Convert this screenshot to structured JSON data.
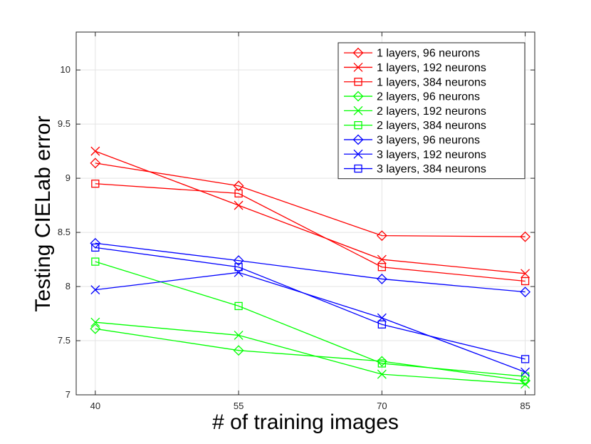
{
  "chart_data": {
    "type": "line",
    "title": "",
    "xlabel": "# of training images",
    "ylabel": "Testing CIELab error",
    "x": [
      40,
      55,
      70,
      85
    ],
    "xticks": [
      "40",
      "55",
      "70",
      "85"
    ],
    "yticks": [
      "7",
      "7.5",
      "8",
      "8.5",
      "9",
      "9.5",
      "10"
    ],
    "xlim": [
      38,
      86
    ],
    "ylim": [
      7,
      10.35
    ],
    "grid": true,
    "legend_position": "top-right",
    "series": [
      {
        "name": "1 layers, 96 neurons",
        "color": "#ff0000",
        "marker": "diamond",
        "values": [
          9.14,
          8.93,
          8.47,
          8.46
        ]
      },
      {
        "name": "1 layers, 192 neurons",
        "color": "#ff0000",
        "marker": "x",
        "values": [
          9.25,
          8.75,
          8.25,
          8.12
        ]
      },
      {
        "name": "1 layers, 384 neurons",
        "color": "#ff0000",
        "marker": "square",
        "values": [
          8.95,
          8.86,
          8.18,
          8.05
        ]
      },
      {
        "name": "2 layers, 96 neurons",
        "color": "#00ff00",
        "marker": "diamond",
        "values": [
          7.61,
          7.41,
          7.31,
          7.13
        ]
      },
      {
        "name": "2 layers, 192 neurons",
        "color": "#00ff00",
        "marker": "x",
        "values": [
          7.67,
          7.55,
          7.19,
          7.1
        ]
      },
      {
        "name": "2 layers, 384 neurons",
        "color": "#00ff00",
        "marker": "square",
        "values": [
          8.23,
          7.82,
          7.29,
          7.17
        ]
      },
      {
        "name": "3 layers, 96 neurons",
        "color": "#0000ff",
        "marker": "diamond",
        "values": [
          8.4,
          8.24,
          8.07,
          7.95
        ]
      },
      {
        "name": "3 layers, 192 neurons",
        "color": "#0000ff",
        "marker": "x",
        "values": [
          7.97,
          8.13,
          7.71,
          7.21
        ]
      },
      {
        "name": "3 layers, 384 neurons",
        "color": "#0000ff",
        "marker": "square",
        "values": [
          8.36,
          8.18,
          7.65,
          7.33
        ]
      }
    ]
  }
}
